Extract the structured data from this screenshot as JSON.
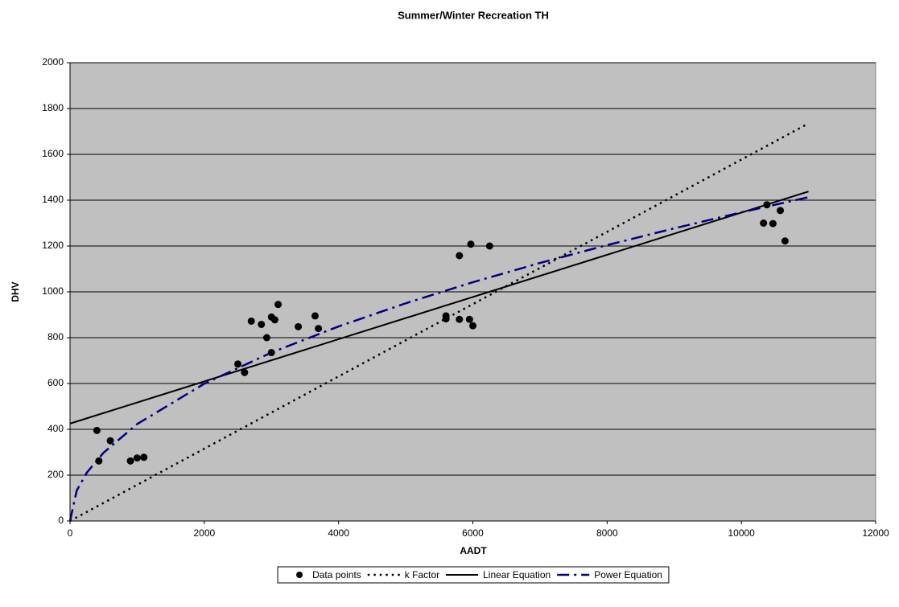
{
  "chart_data": {
    "type": "scatter",
    "title": "Summer/Winter Recreation TH",
    "x_label": "AADT",
    "y_label": "DHV",
    "xlim": [
      0,
      12000
    ],
    "xticks": [
      0,
      2000,
      4000,
      6000,
      8000,
      10000,
      12000
    ],
    "ylim": [
      0,
      2000
    ],
    "yticks": [
      0,
      200,
      400,
      600,
      800,
      1000,
      1200,
      1400,
      1600,
      1800,
      2000
    ],
    "grid": true,
    "legend": "bottom",
    "background": "#c0c0c0",
    "series": [
      {
        "name": "Data points",
        "color": "#000000",
        "style": "markers",
        "x": [
          400,
          430,
          600,
          900,
          1000,
          1100,
          2500,
          2600,
          2700,
          2850,
          2930,
          3000,
          3000,
          3050,
          3100,
          3400,
          3650,
          3700,
          5600,
          5600,
          5800,
          5800,
          5950,
          5970,
          6000,
          6250,
          10330,
          10380,
          10470,
          10580,
          10650
        ],
        "values": [
          395,
          262,
          350,
          262,
          275,
          278,
          685,
          648,
          872,
          858,
          800,
          735,
          890,
          878,
          945,
          848,
          895,
          840,
          895,
          882,
          1158,
          880,
          880,
          1208,
          852,
          1200,
          1300,
          1380,
          1298,
          1355,
          1222
        ]
      },
      {
        "name": "k Factor",
        "color": "#000000",
        "style": "dotted",
        "x": [
          0,
          11000
        ],
        "values": [
          0,
          1735
        ]
      },
      {
        "name": "Linear Equation",
        "color": "#000000",
        "style": "solid",
        "x": [
          0,
          11000
        ],
        "values": [
          425,
          1438
        ]
      },
      {
        "name": "Power Equation",
        "color": "#000080",
        "style": "dashdot",
        "x": [
          0,
          100,
          250,
          500,
          1000,
          2000,
          3000,
          4000,
          5000,
          6000,
          7000,
          8000,
          9000,
          10000,
          11000
        ],
        "values": [
          0,
          133,
          211,
          298,
          423,
          599,
          735,
          849,
          950,
          1042,
          1126,
          1204,
          1277,
          1347,
          1413
        ]
      }
    ]
  }
}
